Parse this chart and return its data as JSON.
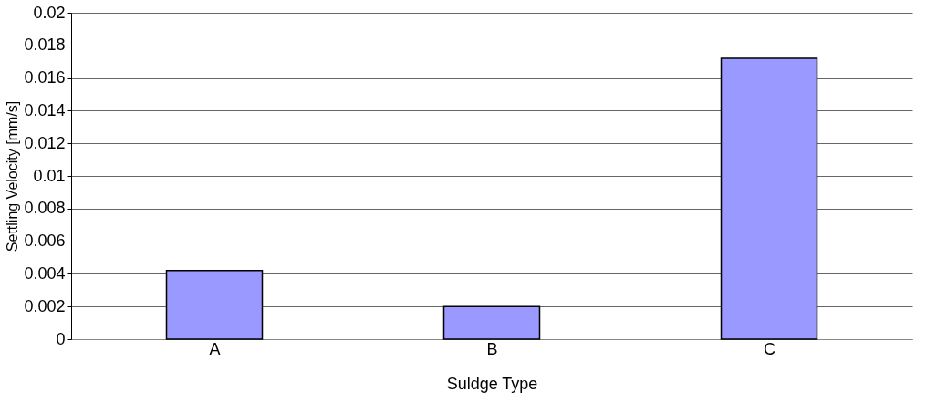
{
  "chart_data": {
    "type": "bar",
    "xlabel": "Suldge Type",
    "ylabel": "Settling Velocity [mm/s]",
    "categories": [
      "A",
      "B",
      "C"
    ],
    "values": [
      0.0042,
      0.002,
      0.0172
    ],
    "color": "#9999ff",
    "ylim": [
      0,
      0.02
    ],
    "yticks": [
      0,
      0.002,
      0.004,
      0.006,
      0.008,
      0.01,
      0.012,
      0.014,
      0.016,
      0.018,
      0.02
    ],
    "grid": "y"
  }
}
